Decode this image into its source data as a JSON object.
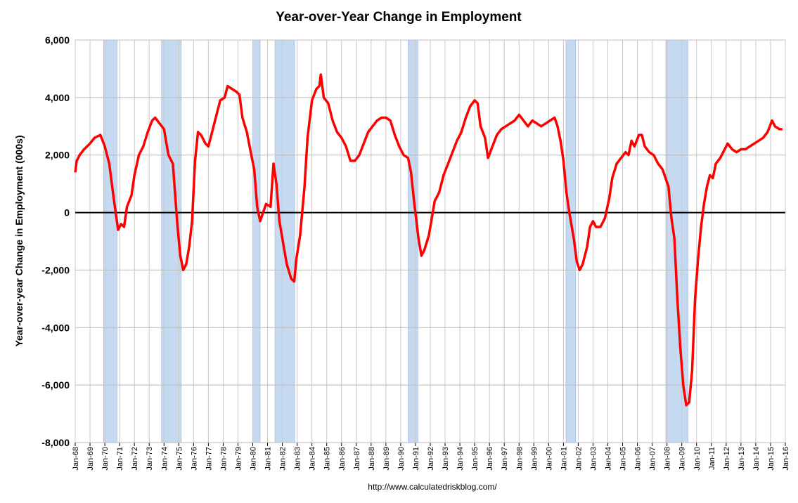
{
  "chart_data": {
    "type": "line",
    "title": "Year-over-Year Change in Employment",
    "ylabel": "Year-over-year Change in Employment (000s)",
    "source": "http://www.calculatedriskblog.com/",
    "color": "#ff0000",
    "recession_color": "#c5d9f1",
    "grid": true,
    "xlim": [
      1968,
      2016
    ],
    "ylim": [
      -8000,
      6000
    ],
    "yticks": [
      {
        "value": -8000,
        "label": "-8,000"
      },
      {
        "value": -6000,
        "label": "-6,000"
      },
      {
        "value": -4000,
        "label": "-4,000"
      },
      {
        "value": -2000,
        "label": "-2,000"
      },
      0,
      {
        "value": 2000,
        "label": "2,000"
      },
      {
        "value": 4000,
        "label": "4,000"
      },
      {
        "value": 6000,
        "label": "6,000"
      }
    ],
    "xticks": [
      {
        "value": 1968,
        "label": "Jan-68"
      },
      {
        "value": 1969,
        "label": "Jan-69"
      },
      {
        "value": 1970,
        "label": "Jan-70"
      },
      {
        "value": 1971,
        "label": "Jan-71"
      },
      {
        "value": 1972,
        "label": "Jan-72"
      },
      {
        "value": 1973,
        "label": "Jan-73"
      },
      {
        "value": 1974,
        "label": "Jan-74"
      },
      {
        "value": 1975,
        "label": "Jan-75"
      },
      {
        "value": 1976,
        "label": "Jan-76"
      },
      {
        "value": 1977,
        "label": "Jan-77"
      },
      {
        "value": 1978,
        "label": "Jan-78"
      },
      {
        "value": 1979,
        "label": "Jan-79"
      },
      {
        "value": 1980,
        "label": "Jan-80"
      },
      {
        "value": 1981,
        "label": "Jan-81"
      },
      {
        "value": 1982,
        "label": "Jan-82"
      },
      {
        "value": 1983,
        "label": "Jan-83"
      },
      {
        "value": 1984,
        "label": "Jan-84"
      },
      {
        "value": 1985,
        "label": "Jan-85"
      },
      {
        "value": 1986,
        "label": "Jan-86"
      },
      {
        "value": 1987,
        "label": "Jan-87"
      },
      {
        "value": 1988,
        "label": "Jan-88"
      },
      {
        "value": 1989,
        "label": "Jan-89"
      },
      {
        "value": 1990,
        "label": "Jan-90"
      },
      {
        "value": 1991,
        "label": "Jan-91"
      },
      {
        "value": 1992,
        "label": "Jan-92"
      },
      {
        "value": 1993,
        "label": "Jan-93"
      },
      {
        "value": 1994,
        "label": "Jan-94"
      },
      {
        "value": 1995,
        "label": "Jan-95"
      },
      {
        "value": 1996,
        "label": "Jan-96"
      },
      {
        "value": 1997,
        "label": "Jan-97"
      },
      {
        "value": 1998,
        "label": "Jan-98"
      },
      {
        "value": 1999,
        "label": "Jan-99"
      },
      {
        "value": 2000,
        "label": "Jan-00"
      },
      {
        "value": 2001,
        "label": "Jan-01"
      },
      {
        "value": 2002,
        "label": "Jan-02"
      },
      {
        "value": 2003,
        "label": "Jan-03"
      },
      {
        "value": 2004,
        "label": "Jan-04"
      },
      {
        "value": 2005,
        "label": "Jan-05"
      },
      {
        "value": 2006,
        "label": "Jan-06"
      },
      {
        "value": 2007,
        "label": "Jan-07"
      },
      {
        "value": 2008,
        "label": "Jan-08"
      },
      {
        "value": 2009,
        "label": "Jan-09"
      },
      {
        "value": 2010,
        "label": "Jan-10"
      },
      {
        "value": 2011,
        "label": "Jan-11"
      },
      {
        "value": 2012,
        "label": "Jan-12"
      },
      {
        "value": 2013,
        "label": "Jan-13"
      },
      {
        "value": 2014,
        "label": "Jan-14"
      },
      {
        "value": 2015,
        "label": "Jan-15"
      },
      {
        "value": 2016,
        "label": "Jan-16"
      }
    ],
    "recessions": [
      [
        1969.92,
        1970.83
      ],
      [
        1973.83,
        1975.17
      ],
      [
        1980.0,
        1980.5
      ],
      [
        1981.5,
        1982.83
      ],
      [
        1990.5,
        1991.17
      ],
      [
        2001.17,
        2001.83
      ],
      [
        2007.92,
        2009.42
      ]
    ],
    "x": [
      1968.0,
      1968.1,
      1968.3,
      1968.6,
      1969.0,
      1969.3,
      1969.7,
      1970.0,
      1970.3,
      1970.6,
      1970.9,
      1971.1,
      1971.3,
      1971.5,
      1971.8,
      1972.0,
      1972.3,
      1972.6,
      1972.9,
      1973.2,
      1973.4,
      1973.7,
      1974.0,
      1974.3,
      1974.6,
      1974.9,
      1975.1,
      1975.3,
      1975.5,
      1975.7,
      1975.9,
      1976.1,
      1976.3,
      1976.5,
      1976.8,
      1977.0,
      1977.2,
      1977.5,
      1977.8,
      1978.1,
      1978.3,
      1978.6,
      1978.9,
      1979.1,
      1979.3,
      1979.6,
      1979.9,
      1980.1,
      1980.3,
      1980.5,
      1980.7,
      1980.9,
      1981.2,
      1981.4,
      1981.6,
      1981.8,
      1982.0,
      1982.3,
      1982.6,
      1982.8,
      1982.95,
      1983.2,
      1983.5,
      1983.7,
      1984.0,
      1984.3,
      1984.5,
      1984.6,
      1984.8,
      1985.1,
      1985.4,
      1985.7,
      1986.0,
      1986.3,
      1986.6,
      1986.9,
      1987.2,
      1987.5,
      1987.8,
      1988.1,
      1988.4,
      1988.7,
      1989.0,
      1989.3,
      1989.6,
      1989.9,
      1990.2,
      1990.5,
      1990.7,
      1990.9,
      1991.2,
      1991.4,
      1991.6,
      1991.9,
      1992.1,
      1992.3,
      1992.6,
      1992.9,
      1993.2,
      1993.5,
      1993.8,
      1994.1,
      1994.4,
      1994.7,
      1995.0,
      1995.2,
      1995.4,
      1995.7,
      1995.9,
      1996.2,
      1996.5,
      1996.8,
      1997.1,
      1997.4,
      1997.7,
      1998.0,
      1998.3,
      1998.6,
      1998.9,
      1999.2,
      1999.5,
      1999.8,
      2000.1,
      2000.4,
      2000.6,
      2000.8,
      2001.0,
      2001.2,
      2001.4,
      2001.7,
      2001.9,
      2002.1,
      2002.3,
      2002.6,
      2002.8,
      2003.0,
      2003.2,
      2003.5,
      2003.8,
      2004.1,
      2004.3,
      2004.6,
      2004.9,
      2005.2,
      2005.4,
      2005.6,
      2005.8,
      2006.1,
      2006.3,
      2006.5,
      2006.8,
      2007.1,
      2007.4,
      2007.7,
      2007.9,
      2008.1,
      2008.3,
      2008.5,
      2008.7,
      2008.9,
      2009.1,
      2009.3,
      2009.5,
      2009.7,
      2009.9,
      2010.1,
      2010.3,
      2010.5,
      2010.7,
      2010.9,
      2011.1,
      2011.3,
      2011.6,
      2011.9,
      2012.1,
      2012.4,
      2012.7,
      2013.0,
      2013.3,
      2013.6,
      2013.9,
      2014.2,
      2014.5,
      2014.8,
      2015.1,
      2015.3,
      2015.6,
      2015.8
    ],
    "values": [
      1400,
      1800,
      2000,
      2200,
      2400,
      2600,
      2700,
      2300,
      1700,
      500,
      -600,
      -400,
      -500,
      200,
      600,
      1300,
      2000,
      2300,
      2800,
      3200,
      3300,
      3100,
      2900,
      2000,
      1700,
      -400,
      -1500,
      -2000,
      -1800,
      -1200,
      -300,
      1800,
      2800,
      2700,
      2400,
      2300,
      2700,
      3300,
      3900,
      4000,
      4400,
      4300,
      4200,
      4100,
      3300,
      2800,
      2000,
      1500,
      200,
      -300,
      0,
      300,
      200,
      1700,
      1000,
      -300,
      -900,
      -1800,
      -2300,
      -2400,
      -1600,
      -800,
      900,
      2600,
      3900,
      4300,
      4400,
      4800,
      4000,
      3800,
      3200,
      2800,
      2600,
      2300,
      1800,
      1800,
      2000,
      2400,
      2800,
      3000,
      3200,
      3300,
      3300,
      3200,
      2700,
      2300,
      2000,
      1900,
      1400,
      400,
      -900,
      -1500,
      -1300,
      -800,
      -200,
      400,
      700,
      1300,
      1700,
      2100,
      2500,
      2800,
      3300,
      3700,
      3900,
      3800,
      3000,
      2600,
      1900,
      2300,
      2700,
      2900,
      3000,
      3100,
      3200,
      3400,
      3200,
      3000,
      3200,
      3100,
      3000,
      3100,
      3200,
      3300,
      3000,
      2500,
      1800,
      700,
      0,
      -900,
      -1700,
      -2000,
      -1800,
      -1200,
      -500,
      -300,
      -500,
      -500,
      -200,
      500,
      1200,
      1700,
      1900,
      2100,
      2000,
      2500,
      2300,
      2700,
      2700,
      2300,
      2100,
      2000,
      1700,
      1500,
      1200,
      900,
      -200,
      -900,
      -3000,
      -4700,
      -6000,
      -6700,
      -6600,
      -5500,
      -3000,
      -1600,
      -500,
      300,
      900,
      1300,
      1200,
      1700,
      1900,
      2200,
      2400,
      2200,
      2100,
      2200,
      2200,
      2300,
      2400,
      2500,
      2600,
      2800,
      3200,
      3000,
      2900,
      2900
    ]
  }
}
